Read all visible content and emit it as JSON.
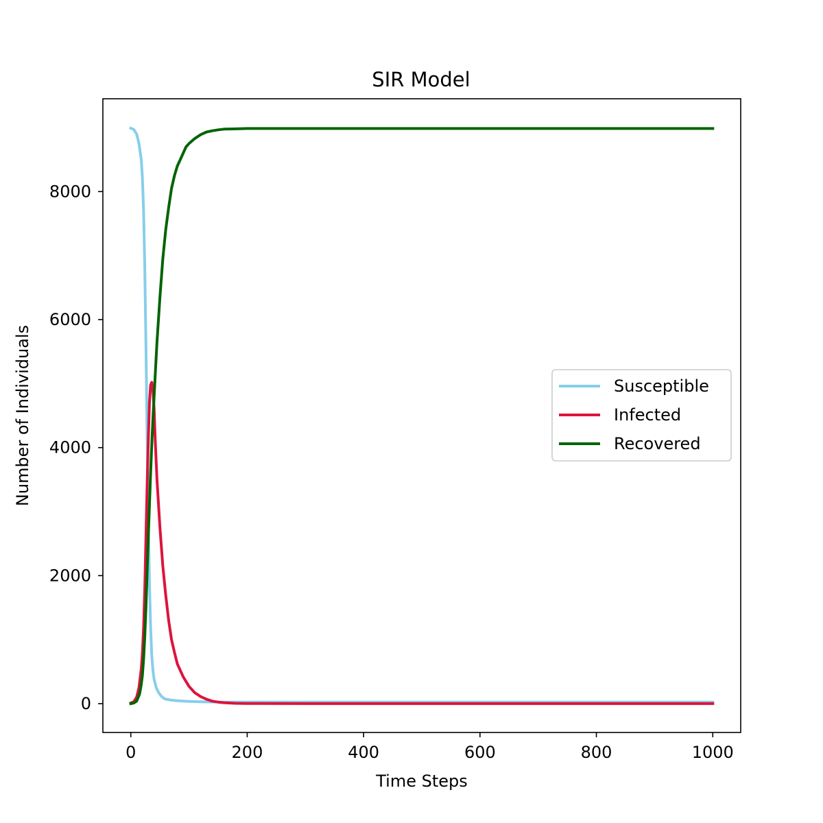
{
  "chart_data": {
    "type": "line",
    "title": "SIR Model",
    "xlabel": "Time Steps",
    "ylabel": "Number of Individuals",
    "xlim": [
      -48,
      1048
    ],
    "ylim": [
      -450,
      9450
    ],
    "xticks": [
      0,
      200,
      400,
      600,
      800,
      1000
    ],
    "yticks": [
      0,
      2000,
      4000,
      6000,
      8000
    ],
    "xtick_labels": [
      "0",
      "200",
      "400",
      "600",
      "800",
      "1000"
    ],
    "ytick_labels": [
      "0",
      "2000",
      "4000",
      "6000",
      "8000"
    ],
    "grid": false,
    "legend": {
      "position": "center-right"
    },
    "series": [
      {
        "name": "Susceptible",
        "color": "#87ceeb",
        "x": [
          0,
          5,
          10,
          14,
          18,
          20,
          22,
          24,
          26,
          28,
          30,
          32,
          34,
          36,
          38,
          40,
          44,
          48,
          52,
          56,
          60,
          70,
          80,
          90,
          100,
          120,
          150,
          200,
          300,
          400,
          500,
          600,
          700,
          800,
          900,
          1000
        ],
        "y": [
          8990,
          8970,
          8900,
          8750,
          8500,
          8200,
          7700,
          6800,
          5600,
          4200,
          2900,
          1900,
          1200,
          750,
          520,
          380,
          240,
          170,
          120,
          90,
          70,
          55,
          45,
          40,
          35,
          30,
          25,
          25,
          25,
          25,
          25,
          25,
          25,
          25,
          25,
          25
        ]
      },
      {
        "name": "Infected",
        "color": "#dc143c",
        "x": [
          0,
          5,
          10,
          14,
          18,
          20,
          22,
          24,
          26,
          28,
          30,
          32,
          34,
          36,
          38,
          40,
          42,
          45,
          50,
          55,
          60,
          65,
          70,
          75,
          80,
          90,
          100,
          110,
          120,
          130,
          140,
          150,
          160,
          180,
          200,
          300,
          400,
          500,
          600,
          700,
          800,
          900,
          1000
        ],
        "y": [
          10,
          30,
          100,
          250,
          550,
          800,
          1200,
          1800,
          2600,
          3400,
          4100,
          4700,
          4980,
          5020,
          4900,
          4600,
          4100,
          3500,
          2750,
          2150,
          1700,
          1300,
          1000,
          800,
          620,
          420,
          270,
          170,
          110,
          70,
          40,
          25,
          15,
          5,
          3,
          1,
          1,
          1,
          1,
          1,
          1,
          1,
          1
        ]
      },
      {
        "name": "Recovered",
        "color": "#006400",
        "x": [
          0,
          5,
          10,
          15,
          18,
          20,
          22,
          24,
          26,
          28,
          30,
          32,
          34,
          36,
          38,
          40,
          42,
          45,
          50,
          55,
          60,
          65,
          70,
          75,
          80,
          85,
          90,
          95,
          100,
          110,
          120,
          130,
          140,
          150,
          160,
          180,
          200,
          300,
          400,
          500,
          600,
          700,
          800,
          900,
          1000
        ],
        "y": [
          0,
          10,
          40,
          150,
          300,
          450,
          700,
          1050,
          1500,
          2050,
          2600,
          3100,
          3600,
          4050,
          4450,
          4800,
          5150,
          5650,
          6350,
          6950,
          7400,
          7750,
          8050,
          8250,
          8400,
          8500,
          8600,
          8700,
          8750,
          8830,
          8890,
          8930,
          8950,
          8965,
          8975,
          8980,
          8985,
          8985,
          8985,
          8985,
          8985,
          8985,
          8985,
          8985,
          8985
        ]
      }
    ]
  }
}
